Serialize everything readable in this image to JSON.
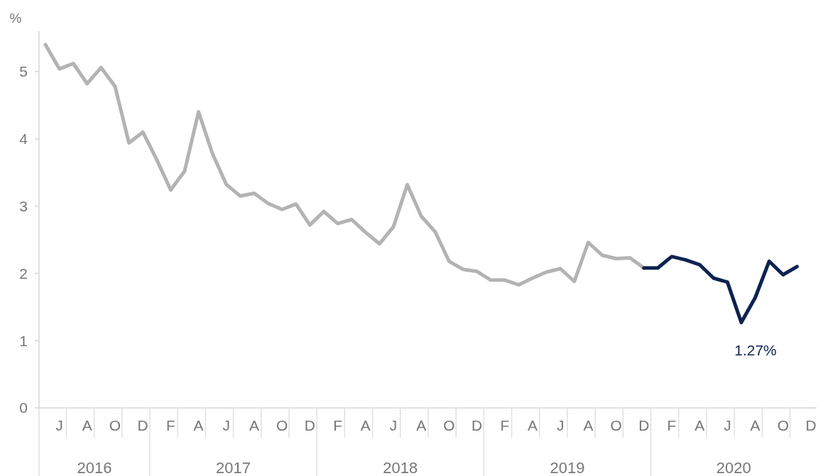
{
  "chart_data": {
    "type": "line",
    "ylabel": "%",
    "categories": [
      null,
      "J",
      null,
      "A",
      null,
      "O",
      null,
      "D",
      null,
      "F",
      null,
      "A",
      null,
      "J",
      null,
      "A",
      null,
      "O",
      null,
      "D",
      null,
      "F",
      null,
      "A",
      null,
      "J",
      null,
      "A",
      null,
      "O",
      null,
      "D",
      null,
      "F",
      null,
      "A",
      null,
      "J",
      null,
      "A",
      null,
      "O",
      null,
      "D",
      null,
      "F",
      null,
      "A",
      null,
      "J",
      null,
      "A",
      null,
      "O",
      null,
      "D"
    ],
    "ylim": [
      0,
      5.6
    ],
    "yticks": [
      0,
      1,
      2,
      3,
      4,
      5
    ],
    "series": [
      {
        "color": "#b3b3b3",
        "values": [
          5.4,
          5.04,
          5.12,
          4.82,
          5.06,
          4.78,
          3.94,
          4.1,
          3.69,
          3.24,
          3.52,
          4.4,
          3.78,
          3.32,
          3.15,
          3.19,
          3.04,
          2.95,
          3.03,
          2.72,
          2.92,
          2.74,
          2.8,
          2.61,
          2.44,
          2.69,
          3.32,
          2.85,
          2.62,
          2.18,
          2.06,
          2.03,
          1.9,
          1.9,
          1.83,
          1.93,
          2.02,
          2.07,
          1.88,
          2.46,
          2.27,
          2.22,
          2.23,
          2.08,
          null,
          null,
          null,
          null,
          null,
          null,
          null,
          null,
          null,
          null,
          null,
          null
        ]
      },
      {
        "color": "#0d2350",
        "values": [
          null,
          null,
          null,
          null,
          null,
          null,
          null,
          null,
          null,
          null,
          null,
          null,
          null,
          null,
          null,
          null,
          null,
          null,
          null,
          null,
          null,
          null,
          null,
          null,
          null,
          null,
          null,
          null,
          null,
          null,
          null,
          null,
          null,
          null,
          null,
          null,
          null,
          null,
          null,
          null,
          null,
          null,
          null,
          2.08,
          2.08,
          2.25,
          2.2,
          2.13,
          1.93,
          1.87,
          1.27,
          1.64,
          2.18,
          1.98,
          2.1,
          null
        ],
        "value_labels": [
          null,
          null,
          null,
          null,
          null,
          null,
          null,
          null,
          null,
          null,
          null,
          null,
          null,
          null,
          null,
          null,
          null,
          null,
          null,
          null,
          null,
          null,
          null,
          null,
          null,
          null,
          null,
          null,
          null,
          null,
          null,
          null,
          null,
          null,
          null,
          null,
          null,
          null,
          null,
          null,
          null,
          null,
          null,
          null,
          null,
          null,
          null,
          null,
          null,
          null,
          "1.27%",
          null,
          null,
          null,
          null,
          null
        ]
      }
    ],
    "annotations": [
      "2016",
      "2017",
      "2018",
      "2019",
      "2020"
    ]
  }
}
